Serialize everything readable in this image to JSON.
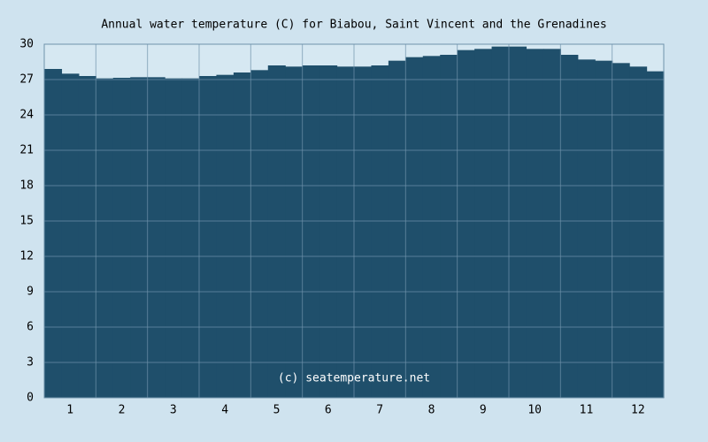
{
  "chart_data": {
    "type": "step-area",
    "title": "Annual water temperature (C) for Biabou, Saint Vincent and the Grenadines",
    "annotation": "(c) seatemperature.net",
    "categories": [
      null,
      1,
      null,
      null,
      2,
      null,
      null,
      3,
      null,
      null,
      4,
      null,
      null,
      5,
      null,
      null,
      6,
      null,
      null,
      7,
      null,
      null,
      8,
      null,
      null,
      9,
      null,
      null,
      10,
      null,
      null,
      11,
      null,
      null,
      12,
      null
    ],
    "values": [
      27.9,
      27.5,
      27.3,
      27.1,
      27.15,
      27.2,
      27.2,
      27.1,
      27.1,
      27.3,
      27.4,
      27.6,
      27.8,
      28.2,
      28.1,
      28.2,
      28.2,
      28.1,
      28.1,
      28.2,
      28.6,
      28.9,
      29.0,
      29.1,
      29.5,
      29.6,
      29.8,
      29.8,
      29.6,
      29.6,
      29.1,
      28.7,
      28.6,
      28.4,
      28.1,
      27.7
    ],
    "color": "#1f4f6b",
    "ylim": [
      0,
      30
    ],
    "yticks": [
      0,
      3,
      6,
      9,
      12,
      15,
      18,
      21,
      24,
      27,
      30
    ],
    "grid": true
  }
}
